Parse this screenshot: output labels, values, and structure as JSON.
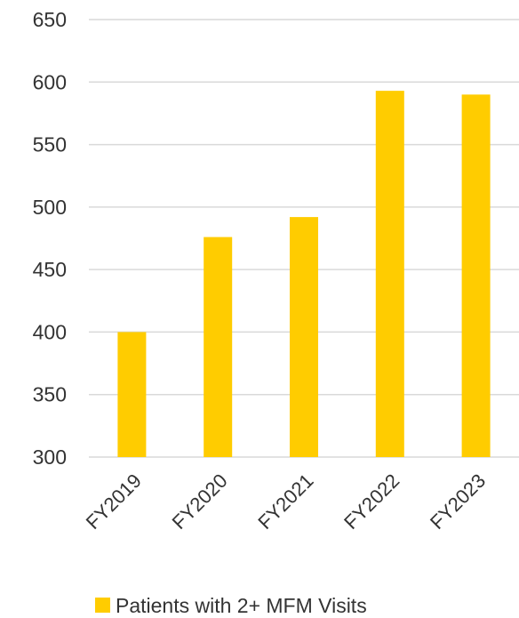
{
  "chart_data": {
    "type": "bar",
    "categories": [
      "FY2019",
      "FY2020",
      "FY2021",
      "FY2022",
      "FY2023"
    ],
    "series": [
      {
        "name": "Patients with 2+ MFM Visits",
        "values": [
          400,
          476,
          492,
          593,
          590
        ],
        "color": "#FFCC00"
      }
    ],
    "ylim": [
      300,
      650
    ],
    "yticks": [
      300,
      350,
      400,
      450,
      500,
      550,
      600,
      650
    ],
    "grid": true,
    "gridline_color": "#d9d9d9",
    "legend_position": "bottom"
  }
}
